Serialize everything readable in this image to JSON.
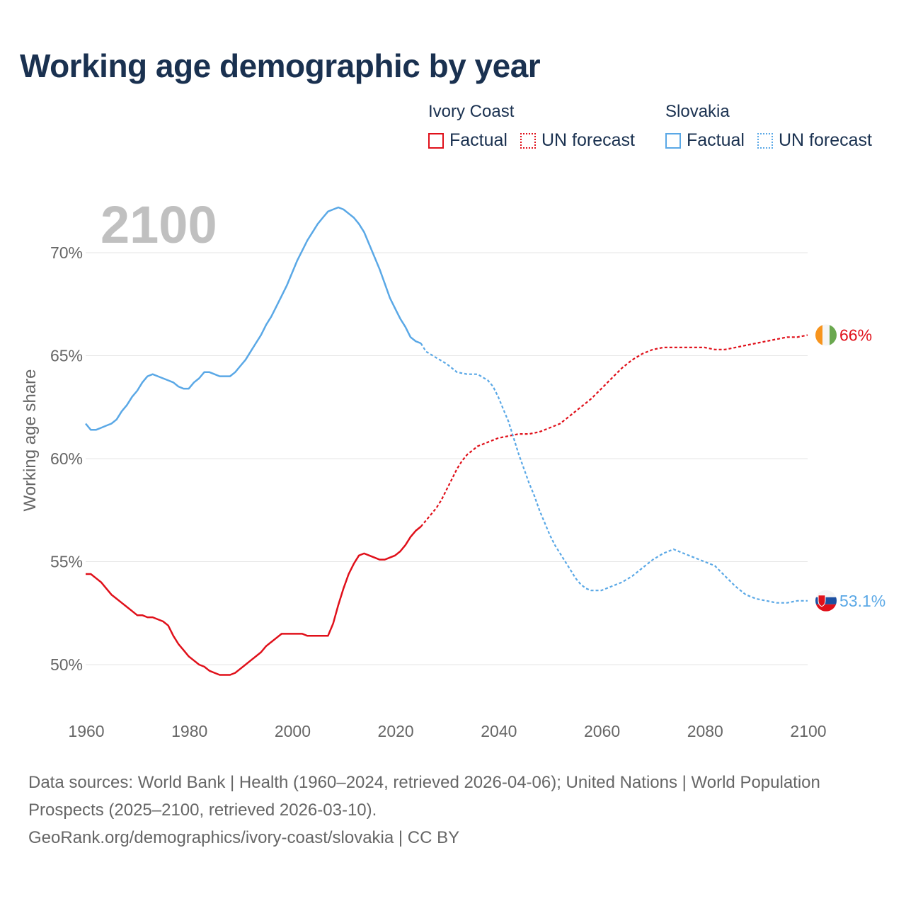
{
  "title": "Working age demographic by year",
  "legend": {
    "groups": [
      {
        "name": "Ivory Coast",
        "factual": "Factual",
        "forecast": "UN forecast"
      },
      {
        "name": "Slovakia",
        "factual": "Factual",
        "forecast": "UN forecast"
      }
    ]
  },
  "year_label": "2100",
  "source": {
    "line1": "Data sources: World Bank | Health (1960–2024, retrieved 2026-04-06); United Nations | World Population Prospects (2025–2100, retrieved 2026-03-10).",
    "line2": "GeoRank.org/demographics/ivory-coast/slovakia | CC BY"
  },
  "colors": {
    "ivory_coast": "#e0101a",
    "slovakia": "#5aa8e6",
    "grid": "#e6e6e6",
    "axis_text": "#666666",
    "year_watermark": "#c0c0c0"
  },
  "chart_data": {
    "type": "line",
    "title": "Working age demographic by year",
    "xlabel": "",
    "ylabel": "Working age share",
    "xlim": [
      1960,
      2100
    ],
    "ylim": [
      48,
      73
    ],
    "xticks": [
      1960,
      1980,
      2000,
      2020,
      2040,
      2060,
      2080,
      2100
    ],
    "yticks": [
      50,
      55,
      60,
      65,
      70
    ],
    "ytick_labels": [
      "50%",
      "55%",
      "60%",
      "65%",
      "70%"
    ],
    "grid": true,
    "legend_position": "top-right",
    "series": [
      {
        "name": "Ivory Coast",
        "color": "#e0101a",
        "end_label": "66%",
        "factual": [
          [
            1960,
            54.4
          ],
          [
            1961,
            54.4
          ],
          [
            1962,
            54.2
          ],
          [
            1963,
            54.0
          ],
          [
            1964,
            53.7
          ],
          [
            1965,
            53.4
          ],
          [
            1966,
            53.2
          ],
          [
            1967,
            53.0
          ],
          [
            1968,
            52.8
          ],
          [
            1969,
            52.6
          ],
          [
            1970,
            52.4
          ],
          [
            1971,
            52.4
          ],
          [
            1972,
            52.3
          ],
          [
            1973,
            52.3
          ],
          [
            1974,
            52.2
          ],
          [
            1975,
            52.1
          ],
          [
            1976,
            51.9
          ],
          [
            1977,
            51.4
          ],
          [
            1978,
            51.0
          ],
          [
            1979,
            50.7
          ],
          [
            1980,
            50.4
          ],
          [
            1981,
            50.2
          ],
          [
            1982,
            50.0
          ],
          [
            1983,
            49.9
          ],
          [
            1984,
            49.7
          ],
          [
            1985,
            49.6
          ],
          [
            1986,
            49.5
          ],
          [
            1987,
            49.5
          ],
          [
            1988,
            49.5
          ],
          [
            1989,
            49.6
          ],
          [
            1990,
            49.8
          ],
          [
            1991,
            50.0
          ],
          [
            1992,
            50.2
          ],
          [
            1993,
            50.4
          ],
          [
            1994,
            50.6
          ],
          [
            1995,
            50.9
          ],
          [
            1996,
            51.1
          ],
          [
            1997,
            51.3
          ],
          [
            1998,
            51.5
          ],
          [
            1999,
            51.5
          ],
          [
            2000,
            51.5
          ],
          [
            2001,
            51.5
          ],
          [
            2002,
            51.5
          ],
          [
            2003,
            51.4
          ],
          [
            2004,
            51.4
          ],
          [
            2005,
            51.4
          ],
          [
            2006,
            51.4
          ],
          [
            2007,
            51.4
          ],
          [
            2008,
            52.0
          ],
          [
            2009,
            52.9
          ],
          [
            2010,
            53.7
          ],
          [
            2011,
            54.4
          ],
          [
            2012,
            54.9
          ],
          [
            2013,
            55.3
          ],
          [
            2014,
            55.4
          ],
          [
            2015,
            55.3
          ],
          [
            2016,
            55.2
          ],
          [
            2017,
            55.1
          ],
          [
            2018,
            55.1
          ],
          [
            2019,
            55.2
          ],
          [
            2020,
            55.3
          ],
          [
            2021,
            55.5
          ],
          [
            2022,
            55.8
          ],
          [
            2023,
            56.2
          ],
          [
            2024,
            56.5
          ],
          [
            2025,
            56.7
          ]
        ],
        "forecast": [
          [
            2025,
            56.7
          ],
          [
            2026,
            57.0
          ],
          [
            2027,
            57.3
          ],
          [
            2028,
            57.6
          ],
          [
            2029,
            58.0
          ],
          [
            2030,
            58.5
          ],
          [
            2031,
            59.0
          ],
          [
            2032,
            59.5
          ],
          [
            2033,
            59.9
          ],
          [
            2034,
            60.2
          ],
          [
            2035,
            60.4
          ],
          [
            2036,
            60.6
          ],
          [
            2037,
            60.7
          ],
          [
            2038,
            60.8
          ],
          [
            2039,
            60.9
          ],
          [
            2040,
            61.0
          ],
          [
            2042,
            61.1
          ],
          [
            2044,
            61.2
          ],
          [
            2046,
            61.2
          ],
          [
            2048,
            61.3
          ],
          [
            2050,
            61.5
          ],
          [
            2052,
            61.7
          ],
          [
            2054,
            62.1
          ],
          [
            2056,
            62.5
          ],
          [
            2058,
            62.9
          ],
          [
            2060,
            63.4
          ],
          [
            2062,
            63.9
          ],
          [
            2064,
            64.4
          ],
          [
            2066,
            64.8
          ],
          [
            2068,
            65.1
          ],
          [
            2070,
            65.3
          ],
          [
            2072,
            65.4
          ],
          [
            2074,
            65.4
          ],
          [
            2076,
            65.4
          ],
          [
            2078,
            65.4
          ],
          [
            2080,
            65.4
          ],
          [
            2082,
            65.3
          ],
          [
            2084,
            65.3
          ],
          [
            2086,
            65.4
          ],
          [
            2088,
            65.5
          ],
          [
            2090,
            65.6
          ],
          [
            2092,
            65.7
          ],
          [
            2094,
            65.8
          ],
          [
            2096,
            65.9
          ],
          [
            2098,
            65.9
          ],
          [
            2100,
            66.0
          ]
        ]
      },
      {
        "name": "Slovakia",
        "color": "#5aa8e6",
        "end_label": "53.1%",
        "factual": [
          [
            1960,
            61.7
          ],
          [
            1961,
            61.4
          ],
          [
            1962,
            61.4
          ],
          [
            1963,
            61.5
          ],
          [
            1964,
            61.6
          ],
          [
            1965,
            61.7
          ],
          [
            1966,
            61.9
          ],
          [
            1967,
            62.3
          ],
          [
            1968,
            62.6
          ],
          [
            1969,
            63.0
          ],
          [
            1970,
            63.3
          ],
          [
            1971,
            63.7
          ],
          [
            1972,
            64.0
          ],
          [
            1973,
            64.1
          ],
          [
            1974,
            64.0
          ],
          [
            1975,
            63.9
          ],
          [
            1976,
            63.8
          ],
          [
            1977,
            63.7
          ],
          [
            1978,
            63.5
          ],
          [
            1979,
            63.4
          ],
          [
            1980,
            63.4
          ],
          [
            1981,
            63.7
          ],
          [
            1982,
            63.9
          ],
          [
            1983,
            64.2
          ],
          [
            1984,
            64.2
          ],
          [
            1985,
            64.1
          ],
          [
            1986,
            64.0
          ],
          [
            1987,
            64.0
          ],
          [
            1988,
            64.0
          ],
          [
            1989,
            64.2
          ],
          [
            1990,
            64.5
          ],
          [
            1991,
            64.8
          ],
          [
            1992,
            65.2
          ],
          [
            1993,
            65.6
          ],
          [
            1994,
            66.0
          ],
          [
            1995,
            66.5
          ],
          [
            1996,
            66.9
          ],
          [
            1997,
            67.4
          ],
          [
            1998,
            67.9
          ],
          [
            1999,
            68.4
          ],
          [
            2000,
            69.0
          ],
          [
            2001,
            69.6
          ],
          [
            2002,
            70.1
          ],
          [
            2003,
            70.6
          ],
          [
            2004,
            71.0
          ],
          [
            2005,
            71.4
          ],
          [
            2006,
            71.7
          ],
          [
            2007,
            72.0
          ],
          [
            2008,
            72.1
          ],
          [
            2009,
            72.2
          ],
          [
            2010,
            72.1
          ],
          [
            2011,
            71.9
          ],
          [
            2012,
            71.7
          ],
          [
            2013,
            71.4
          ],
          [
            2014,
            71.0
          ],
          [
            2015,
            70.4
          ],
          [
            2016,
            69.8
          ],
          [
            2017,
            69.2
          ],
          [
            2018,
            68.5
          ],
          [
            2019,
            67.8
          ],
          [
            2020,
            67.3
          ],
          [
            2021,
            66.8
          ],
          [
            2022,
            66.4
          ],
          [
            2023,
            65.9
          ],
          [
            2024,
            65.7
          ],
          [
            2025,
            65.6
          ]
        ],
        "forecast": [
          [
            2025,
            65.6
          ],
          [
            2026,
            65.2
          ],
          [
            2028,
            64.9
          ],
          [
            2030,
            64.6
          ],
          [
            2032,
            64.2
          ],
          [
            2034,
            64.1
          ],
          [
            2036,
            64.1
          ],
          [
            2038,
            63.8
          ],
          [
            2039,
            63.5
          ],
          [
            2040,
            63.0
          ],
          [
            2041,
            62.4
          ],
          [
            2042,
            61.8
          ],
          [
            2043,
            61.0
          ],
          [
            2044,
            60.2
          ],
          [
            2045,
            59.5
          ],
          [
            2046,
            58.8
          ],
          [
            2047,
            58.2
          ],
          [
            2048,
            57.5
          ],
          [
            2049,
            56.9
          ],
          [
            2050,
            56.3
          ],
          [
            2051,
            55.8
          ],
          [
            2052,
            55.4
          ],
          [
            2053,
            55.0
          ],
          [
            2054,
            54.6
          ],
          [
            2055,
            54.2
          ],
          [
            2056,
            53.9
          ],
          [
            2057,
            53.7
          ],
          [
            2058,
            53.6
          ],
          [
            2060,
            53.6
          ],
          [
            2062,
            53.8
          ],
          [
            2064,
            54.0
          ],
          [
            2066,
            54.3
          ],
          [
            2068,
            54.7
          ],
          [
            2070,
            55.1
          ],
          [
            2072,
            55.4
          ],
          [
            2074,
            55.6
          ],
          [
            2076,
            55.4
          ],
          [
            2078,
            55.2
          ],
          [
            2080,
            55.0
          ],
          [
            2082,
            54.8
          ],
          [
            2084,
            54.3
          ],
          [
            2086,
            53.8
          ],
          [
            2088,
            53.4
          ],
          [
            2090,
            53.2
          ],
          [
            2092,
            53.1
          ],
          [
            2094,
            53.0
          ],
          [
            2096,
            53.0
          ],
          [
            2098,
            53.1
          ],
          [
            2100,
            53.1
          ]
        ]
      }
    ]
  }
}
